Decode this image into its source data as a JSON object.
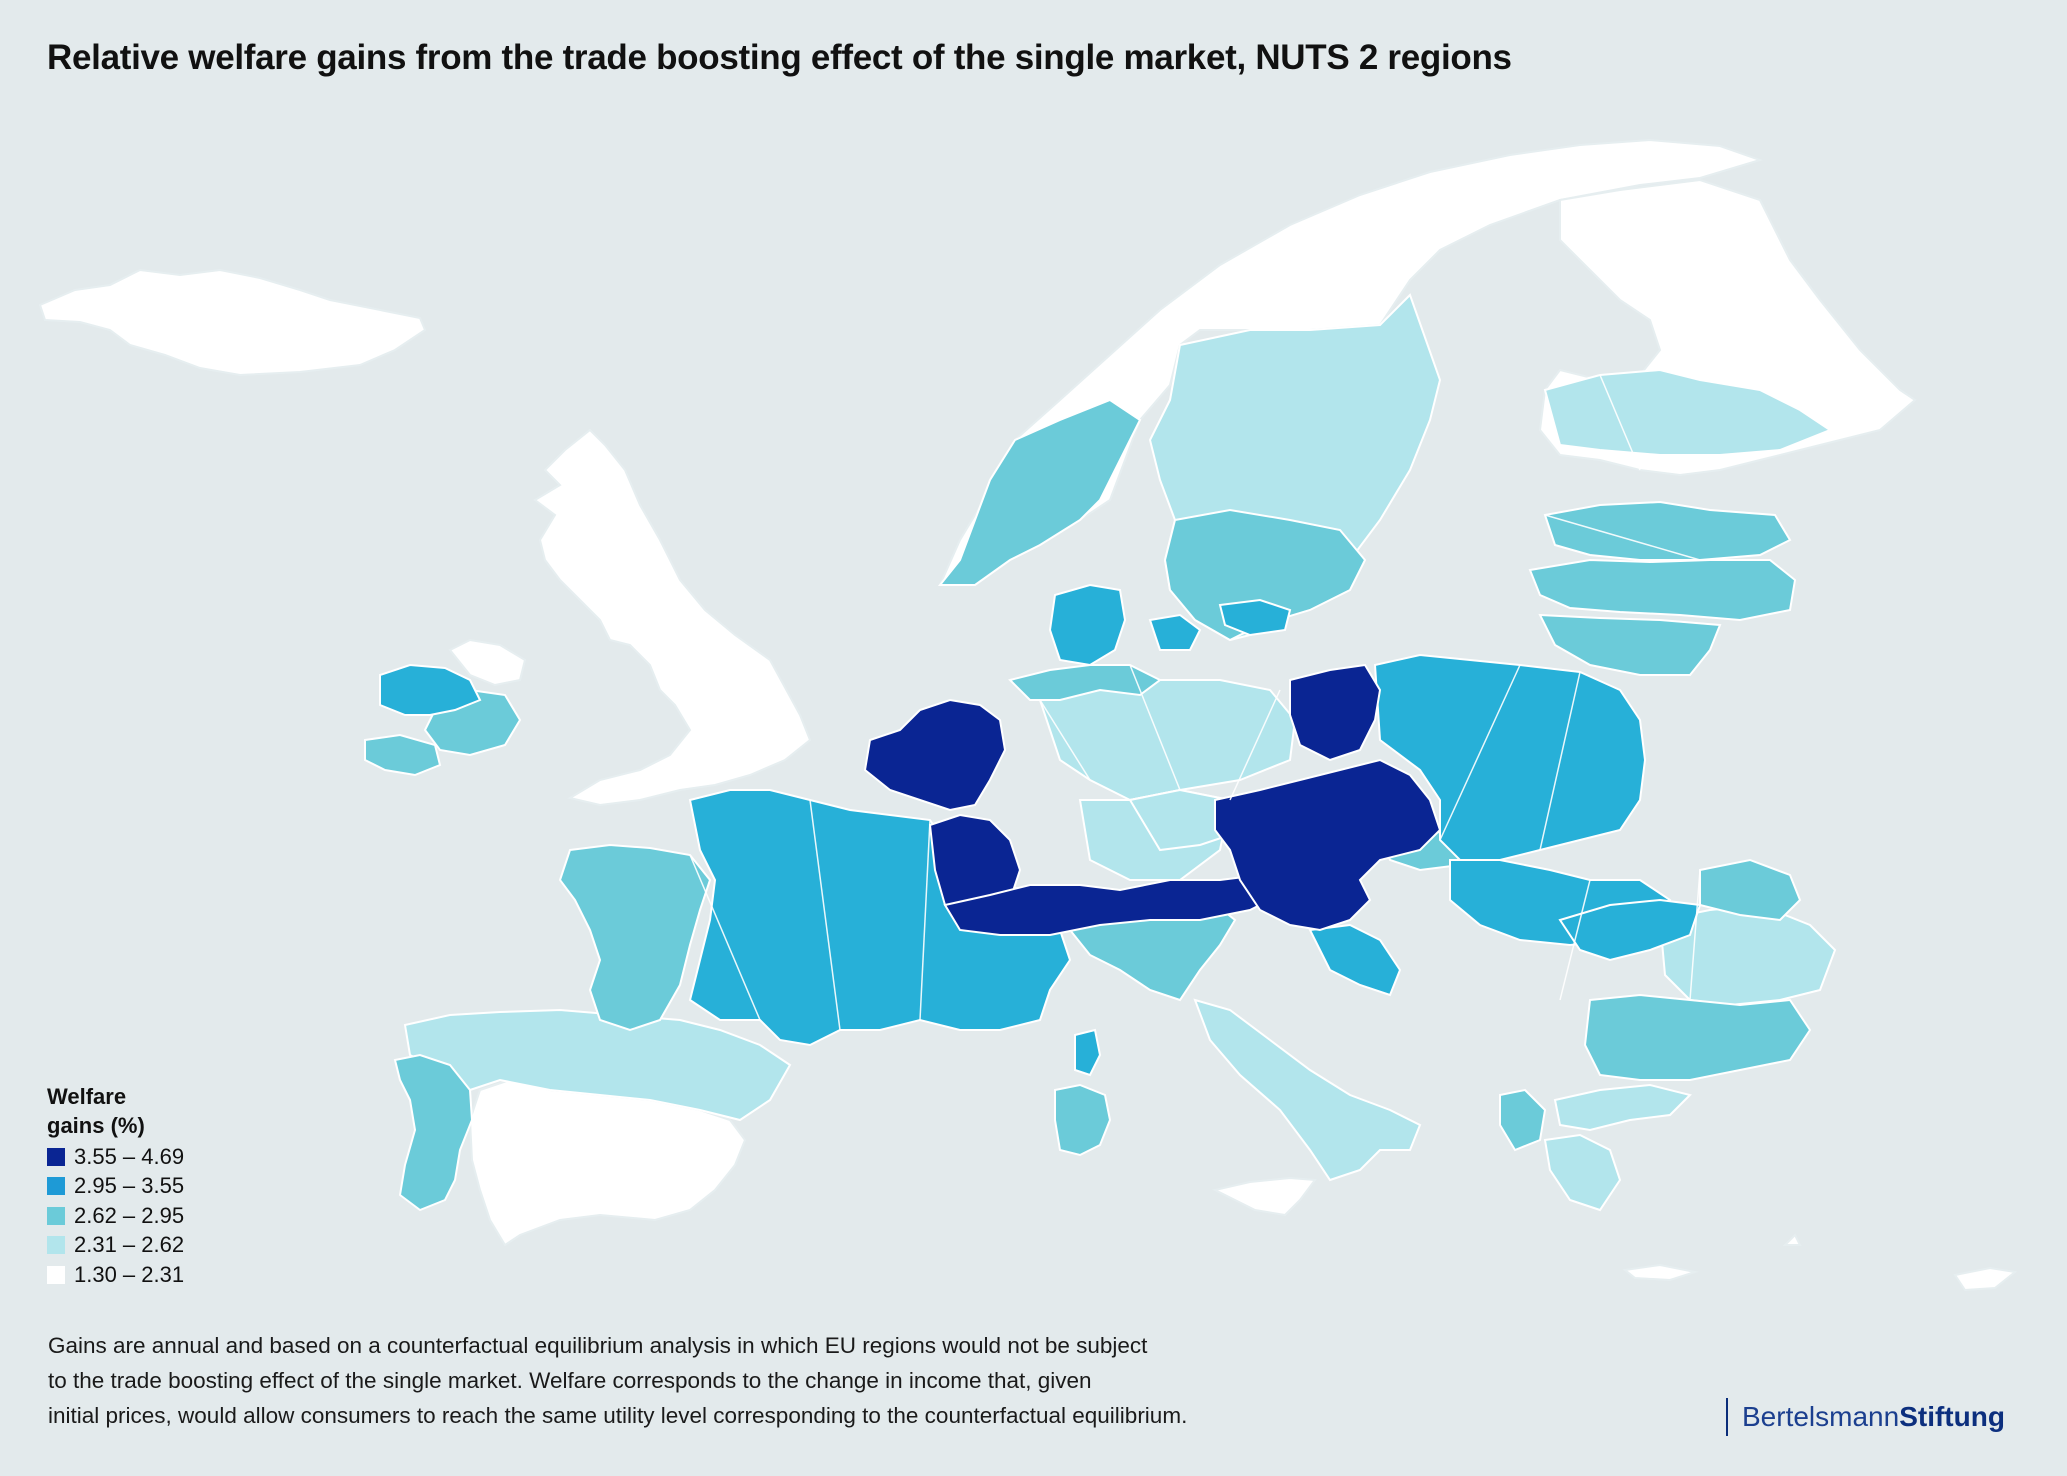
{
  "title": "Relative welfare gains from the trade boosting effect of the single market, NUTS 2 regions",
  "legend": {
    "title_line1": "Welfare",
    "title_line2": "gains (%)",
    "items": [
      {
        "label": "3.55 – 4.69",
        "color": "#0a2593"
      },
      {
        "label": "2.95 – 3.55",
        "color": "#1e9ad6"
      },
      {
        "label": "2.62 – 2.95",
        "color": "#6bcbd9"
      },
      {
        "label": "2.31 – 2.62",
        "color": "#b2e5ec"
      },
      {
        "label": "1.30 – 2.31",
        "color": "#ffffff"
      }
    ]
  },
  "footnote": {
    "line1": "Gains are annual and based on a counterfactual equilibrium analysis in which EU regions would not be subject",
    "line2": "to the trade boosting effect of the single market. Welfare corresponds to the change in income that, given",
    "line3": "initial prices, would allow consumers to reach the same utility level corresponding to the counterfactual equilibrium."
  },
  "brand": {
    "regular": "Bertelsmann",
    "bold": "Stiftung"
  },
  "colors": {
    "sea": "#e3eaec",
    "class_1": "#0a2593",
    "class_2": "#1e9ad6",
    "class_2_map": "#27b0d8",
    "class_3": "#6bcbd9",
    "class_4": "#b2e5ec",
    "class_5": "#ffffff",
    "border": "#ffffff"
  }
}
